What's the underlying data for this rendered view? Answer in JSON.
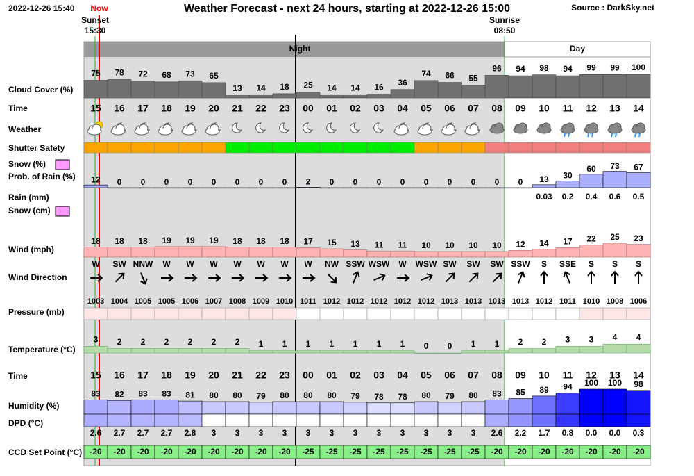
{
  "header": {
    "datetime": "2022-12-26 15:40",
    "now": "Now",
    "title": "Weather Forecast - next 24 hours, starting at 2022-12-26 15:00",
    "source": "Source : DarkSky.net",
    "sunset_label": "Sunset",
    "sunset_time": "15:30",
    "sunrise_label": "Sunrise",
    "sunrise_time": "08:50",
    "night": "Night",
    "day": "Day"
  },
  "labels": {
    "cloud_cover": "Cloud Cover (%)",
    "time": "Time",
    "weather": "Weather",
    "shutter_safety": "Shutter Safety",
    "snow_pct": "Snow (%)",
    "rain_prob": "Prob. of Rain (%)",
    "rain_mm": "Rain (mm)",
    "snow_cm": "Snow (cm)",
    "wind": "Wind (mph)",
    "wind_direction": "Wind Direction",
    "pressure": "Pressure (mb)",
    "temperature": "Temperature (°C)",
    "time2": "Time",
    "humidity": "Humidity (%)",
    "dpd": "DPD (°C)",
    "ccd": "CCD Set Point (°C)"
  },
  "hours": [
    "15",
    "16",
    "17",
    "18",
    "19",
    "20",
    "21",
    "22",
    "23",
    "00",
    "01",
    "02",
    "03",
    "04",
    "05",
    "06",
    "07",
    "08",
    "09",
    "10",
    "11",
    "12",
    "13",
    "14"
  ],
  "cloud_cover": [
    75,
    78,
    72,
    68,
    73,
    65,
    13,
    14,
    18,
    25,
    14,
    14,
    16,
    36,
    74,
    66,
    55,
    96,
    94,
    98,
    94,
    99,
    99,
    100
  ],
  "shutter_colors": [
    "#ffa500",
    "#ffa500",
    "#ffa500",
    "#ffa500",
    "#ffa500",
    "#ffa500",
    "#00ee00",
    "#00ee00",
    "#00ee00",
    "#00ee00",
    "#00ee00",
    "#00ee00",
    "#00ee00",
    "#00ee00",
    "#ffa500",
    "#ffa500",
    "#ffa500",
    "#f08080",
    "#f08080",
    "#f08080",
    "#f08080",
    "#f08080",
    "#f08080",
    "#f08080"
  ],
  "rain_probability": [
    12,
    0,
    0,
    0,
    0,
    0,
    0,
    0,
    0,
    2,
    0,
    0,
    0,
    0,
    0,
    0,
    0,
    0,
    0,
    13,
    30,
    60,
    73,
    67
  ],
  "rain_mm": [
    null,
    null,
    null,
    null,
    null,
    null,
    null,
    null,
    null,
    null,
    null,
    null,
    null,
    null,
    null,
    null,
    null,
    null,
    null,
    0.03,
    0.2,
    0.4,
    0.6,
    0.5
  ],
  "wind": [
    18,
    18,
    18,
    19,
    19,
    19,
    18,
    18,
    18,
    17,
    15,
    13,
    11,
    11,
    10,
    10,
    10,
    10,
    12,
    14,
    17,
    22,
    25,
    23
  ],
  "wind_direction": [
    "W",
    "SW",
    "NNW",
    "W",
    "W",
    "W",
    "W",
    "W",
    "W",
    "W",
    "NW",
    "SSW",
    "WSW",
    "W",
    "WSW",
    "SW",
    "SW",
    "SW",
    "SSW",
    "S",
    "SSE",
    "S",
    "S",
    "S"
  ],
  "pressure": [
    1003,
    1004,
    1005,
    1005,
    1006,
    1007,
    1008,
    1009,
    1010,
    1011,
    1012,
    1012,
    1012,
    1012,
    1012,
    1013,
    1013,
    1013,
    1013,
    1012,
    1011,
    1010,
    1008,
    1006
  ],
  "temperature": [
    3,
    2,
    2,
    2,
    2,
    2,
    2,
    1,
    1,
    1,
    1,
    1,
    1,
    1,
    0,
    0,
    1,
    1,
    2,
    2,
    3,
    3,
    4,
    4
  ],
  "humidity": [
    83,
    82,
    83,
    83,
    81,
    80,
    80,
    79,
    80,
    80,
    80,
    79,
    78,
    78,
    80,
    79,
    80,
    83,
    85,
    89,
    94,
    100,
    100,
    98
  ],
  "dpd": {
    "values": [
      2.6,
      2.7,
      2.7,
      2.7,
      2.8,
      3,
      3,
      3,
      3,
      3,
      3,
      3,
      3,
      3,
      3,
      3,
      3,
      2.6,
      2.2,
      1.7,
      0.8,
      0.0,
      0.0,
      0.3
    ],
    "value_labels": [
      "2.6",
      "2.7",
      "2.7",
      "2.7",
      "2.8",
      "3",
      "3",
      "3",
      "3",
      "3",
      "3",
      "3",
      "3",
      "3",
      "3",
      "3",
      "3",
      "2.6",
      "2.2",
      "1.7",
      "0.8",
      "0.0",
      "0.0",
      "0.3"
    ]
  },
  "ccd_set_point": [
    -20,
    -20,
    -20,
    -20,
    -20,
    -20,
    -20,
    -20,
    -20,
    -25,
    -25,
    -25,
    -25,
    -25,
    -25,
    -25,
    -25,
    -20,
    -20,
    -20,
    -20,
    -20,
    -20,
    -20
  ]
}
